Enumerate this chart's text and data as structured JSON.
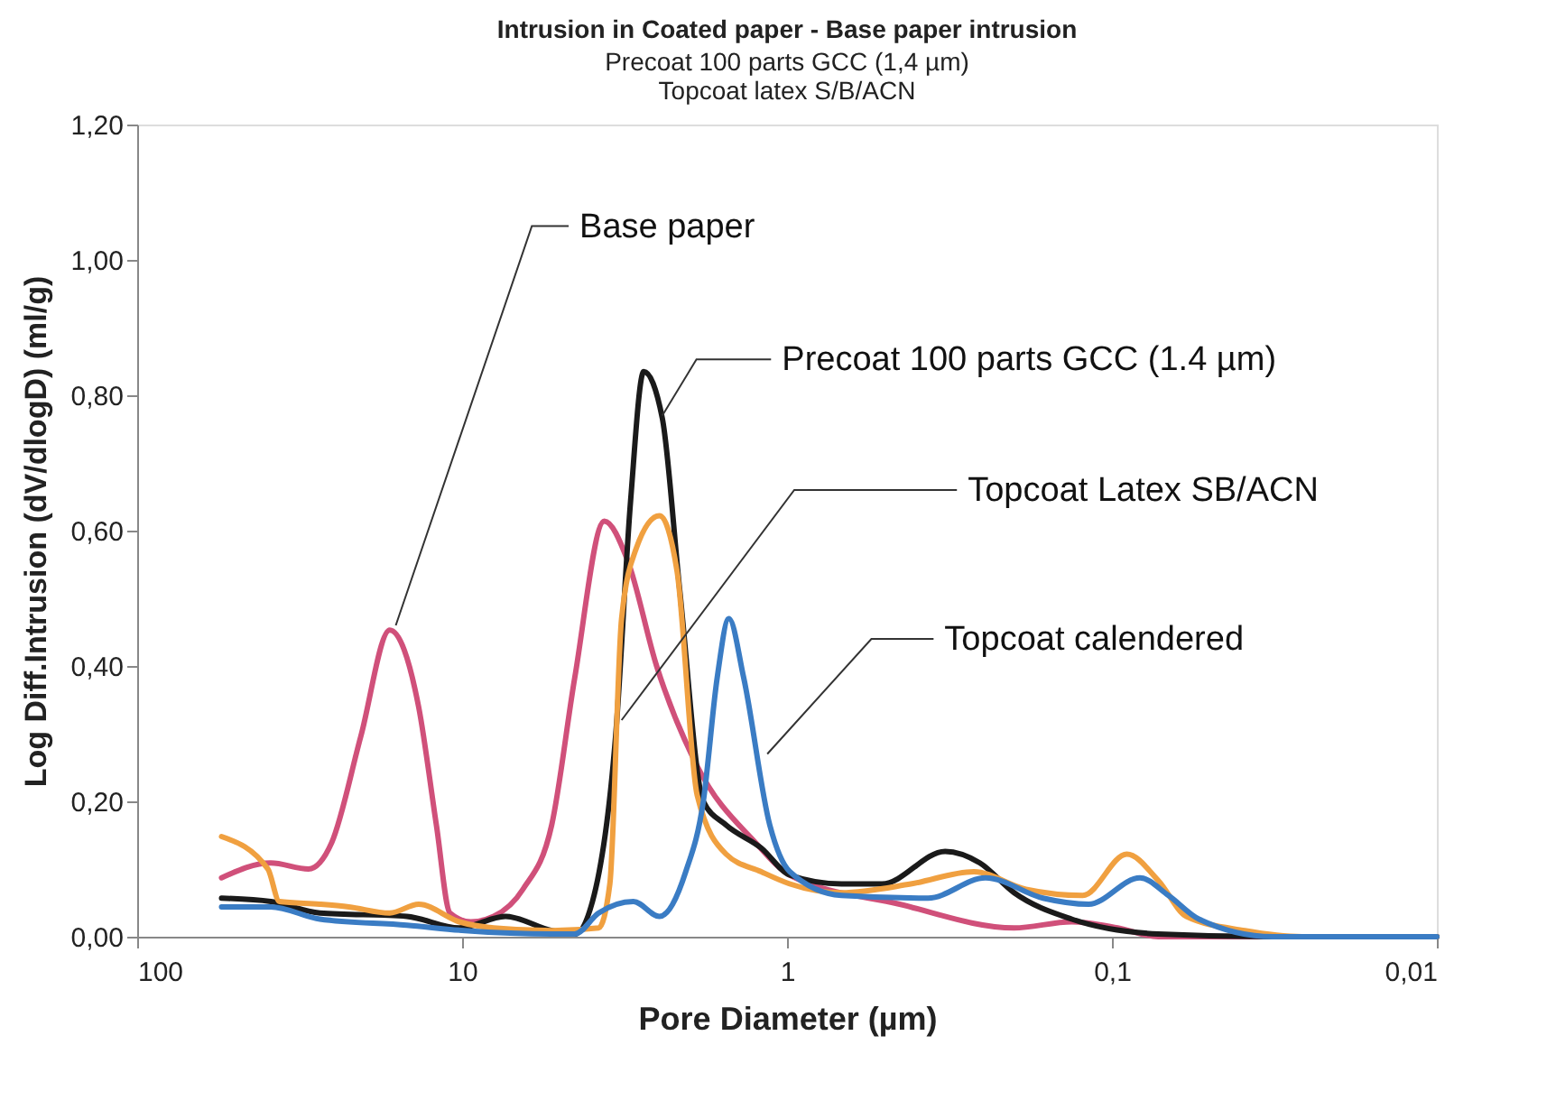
{
  "chart_data": {
    "type": "line",
    "title": "Intrusion in Coated paper - Base paper intrusion",
    "subtitle": "Precoat 100 parts GCC (1,4 µm)\nTopcoat latex S/B/ACN",
    "xlabel": "Pore Diameter (µm)",
    "ylabel": "Log Diff.Intrusion (dV/dlogD) (ml/g)",
    "log": "x",
    "xlim": [
      100,
      0.01
    ],
    "xticks": [
      100,
      10,
      1,
      {
        "value": 0.1,
        "label": "0,1"
      },
      {
        "value": 0.01,
        "label": "0,01"
      }
    ],
    "ylim": [
      0,
      1.2
    ],
    "yticks": [
      {
        "value": 0,
        "label": "0,00"
      },
      {
        "value": 0.2,
        "label": "0,20"
      },
      {
        "value": 0.4,
        "label": "0,40"
      },
      {
        "value": 0.6,
        "label": "0,60"
      },
      {
        "value": 0.8,
        "label": "0,80"
      },
      {
        "value": 1.0,
        "label": "1,00"
      },
      {
        "value": 1.2,
        "label": "1,20"
      }
    ],
    "grid": false,
    "legend": false,
    "marker": "none",
    "line_style": "solid",
    "series": [
      {
        "color": "#d0507a",
        "x": [
          55,
          38.8,
          29.7,
          25.2,
          20.5,
          16.7,
          13.6,
          12.0,
          10.9,
          9.4,
          8.0,
          6.5,
          5.3,
          4.5,
          3.65,
          3.1,
          2.52,
          1.89,
          1.25,
          0.98,
          0.45,
          0.2,
          0.133,
          0.096,
          0.072,
          0.032,
          0.01
        ],
        "values": [
          0.087,
          0.109,
          0.1,
          0.139,
          0.296,
          0.453,
          0.339,
          0.165,
          0.035,
          0.022,
          0.03,
          0.07,
          0.165,
          0.383,
          0.614,
          0.557,
          0.4,
          0.252,
          0.139,
          0.091,
          0.048,
          0.013,
          0.022,
          0.013,
          0.0,
          0.0,
          0.0
        ]
      },
      {
        "color": "#1a1a1a",
        "x": [
          55,
          38.8,
          27.4,
          14.8,
          10.2,
          7.35,
          5.3,
          4.5,
          3.97,
          3.37,
          3.03,
          2.76,
          2.42,
          2.14,
          1.81,
          1.54,
          1.2,
          0.98,
          0.68,
          0.51,
          0.326,
          0.255,
          0.2,
          0.133,
          0.072,
          0.032,
          0.01
        ],
        "values": [
          0.057,
          0.052,
          0.035,
          0.03,
          0.013,
          0.03,
          0.009,
          0.004,
          0.052,
          0.296,
          0.644,
          0.835,
          0.766,
          0.513,
          0.2,
          0.165,
          0.131,
          0.091,
          0.078,
          0.078,
          0.126,
          0.109,
          0.065,
          0.026,
          0.004,
          0.0,
          0.0
        ]
      },
      {
        "color": "#f0a040",
        "x": [
          55,
          39.6,
          36.5,
          27.4,
          22.3,
          16.7,
          13.6,
          10.2,
          8.0,
          5.3,
          3.8,
          3.51,
          3.23,
          2.91,
          2.47,
          2.18,
          1.89,
          1.54,
          1.2,
          0.98,
          0.68,
          0.416,
          0.266,
          0.184,
          0.123,
          0.09,
          0.072,
          0.059,
          0.039,
          0.026,
          0.01
        ],
        "values": [
          0.148,
          0.1,
          0.052,
          0.048,
          0.044,
          0.035,
          0.048,
          0.022,
          0.013,
          0.009,
          0.013,
          0.078,
          0.47,
          0.574,
          0.622,
          0.54,
          0.209,
          0.122,
          0.096,
          0.078,
          0.065,
          0.078,
          0.096,
          0.07,
          0.061,
          0.122,
          0.083,
          0.03,
          0.009,
          0.0,
          0.0
        ]
      },
      {
        "color": "#3a7cc4",
        "x": [
          55,
          38.8,
          27.4,
          14.8,
          9.8,
          5.3,
          4.5,
          3.8,
          2.97,
          2.47,
          2.05,
          1.81,
          1.64,
          1.51,
          1.36,
          1.13,
          0.98,
          0.68,
          0.368,
          0.245,
          0.163,
          0.118,
          0.082,
          0.067,
          0.054,
          0.032,
          0.01
        ],
        "values": [
          0.044,
          0.044,
          0.026,
          0.017,
          0.009,
          0.004,
          0.004,
          0.035,
          0.052,
          0.03,
          0.096,
          0.2,
          0.383,
          0.47,
          0.383,
          0.165,
          0.096,
          0.061,
          0.057,
          0.087,
          0.057,
          0.048,
          0.087,
          0.061,
          0.026,
          0.0,
          0.0
        ]
      }
    ],
    "annotations": [
      {
        "text": "Base paper",
        "x": 16,
        "y": 0.46
      },
      {
        "text": "Precoat 100 parts GCC (1.4 µm)",
        "x": 2.42,
        "y": 0.77
      },
      {
        "text": "Topcoat Latex SB/ACN",
        "x": 3.23,
        "y": 0.32
      },
      {
        "text": "Topcoat calendered",
        "x": 1.15,
        "y": 0.27
      }
    ]
  }
}
